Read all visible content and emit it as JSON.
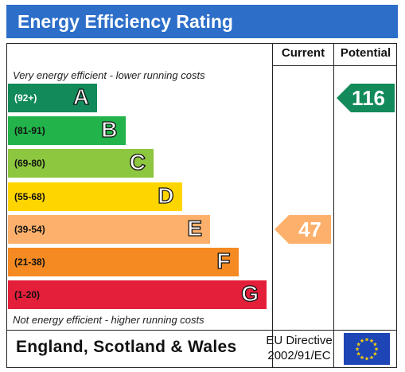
{
  "title": "Energy Efficiency Rating",
  "columns": {
    "current": "Current",
    "potential": "Potential"
  },
  "top_caption": "Very energy efficient - lower running costs",
  "bottom_caption": "Not energy efficient - higher running costs",
  "bands": [
    {
      "range": "(92+)",
      "letter": "A",
      "color": "#128a5a"
    },
    {
      "range": "(81-91)",
      "letter": "B",
      "color": "#22b34a"
    },
    {
      "range": "(69-80)",
      "letter": "C",
      "color": "#8dc63f"
    },
    {
      "range": "(55-68)",
      "letter": "D",
      "color": "#ffd500"
    },
    {
      "range": "(39-54)",
      "letter": "E",
      "color": "#fcb06b"
    },
    {
      "range": "(21-38)",
      "letter": "F",
      "color": "#f58a22"
    },
    {
      "range": "(1-20)",
      "letter": "G",
      "color": "#e41f3a"
    }
  ],
  "current": {
    "value": "47",
    "band": "E",
    "color": "#fcb06b"
  },
  "potential": {
    "value": "116",
    "band": "A",
    "color": "#128a5a"
  },
  "footer": {
    "region": "England, Scotland & Wales",
    "directive_line1": "EU Directive",
    "directive_line2": "2002/91/EC"
  },
  "chart_data": {
    "type": "bar",
    "title": "Energy Efficiency Rating",
    "categories": [
      "(92+)",
      "(81-91)",
      "(69-80)",
      "(55-68)",
      "(39-54)",
      "(21-38)",
      "(1-20)"
    ],
    "series": [
      {
        "name": "Current",
        "values": [
          null,
          null,
          null,
          null,
          47,
          null,
          null
        ]
      },
      {
        "name": "Potential",
        "values": [
          116,
          null,
          null,
          null,
          null,
          null,
          null
        ]
      }
    ],
    "legend": "none",
    "grid": false
  }
}
